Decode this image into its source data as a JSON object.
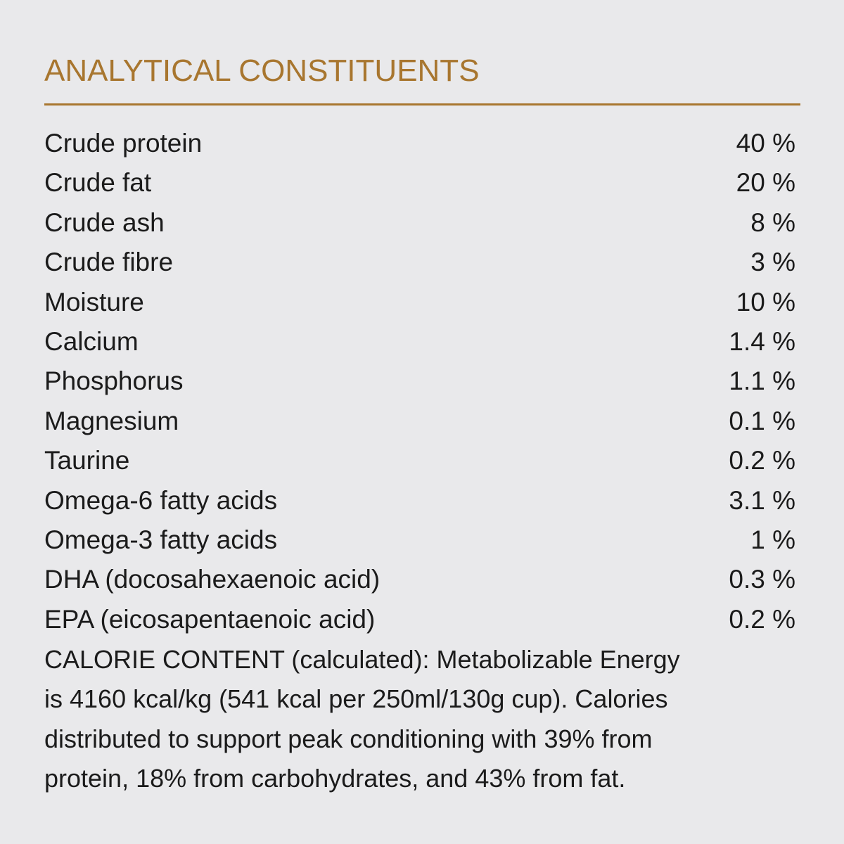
{
  "header": {
    "title": "ANALYTICAL CONSTITUENTS"
  },
  "table": {
    "rows": [
      [
        "Crude protein",
        "40 %"
      ],
      [
        "Crude fat",
        "20 %"
      ],
      [
        "Crude ash",
        "8 %"
      ],
      [
        "Crude fibre",
        "3 %"
      ],
      [
        "Moisture",
        "10 %"
      ],
      [
        "Calcium",
        "1.4 %"
      ],
      [
        "Phosphorus",
        "1.1 %"
      ],
      [
        "Magnesium",
        "0.1 %"
      ],
      [
        "Taurine",
        "0.2 %"
      ],
      [
        "Omega-6 fatty acids",
        "3.1 %"
      ],
      [
        "Omega-3 fatty acids",
        "1 %"
      ],
      [
        "DHA (docosahexaenoic acid)",
        "0.3 %"
      ],
      [
        "EPA (eicosapentaenoic acid)",
        "0.2 %"
      ]
    ]
  },
  "note": {
    "lines": [
      "CALORIE CONTENT (calculated): Metabolizable Energy",
      "is 4160 kcal/kg (541 kcal per 250ml/130g cup). Calories",
      "distributed to support peak conditioning with 39% from",
      "protein, 18% from carbohydrates, and 43% from fat."
    ]
  }
}
